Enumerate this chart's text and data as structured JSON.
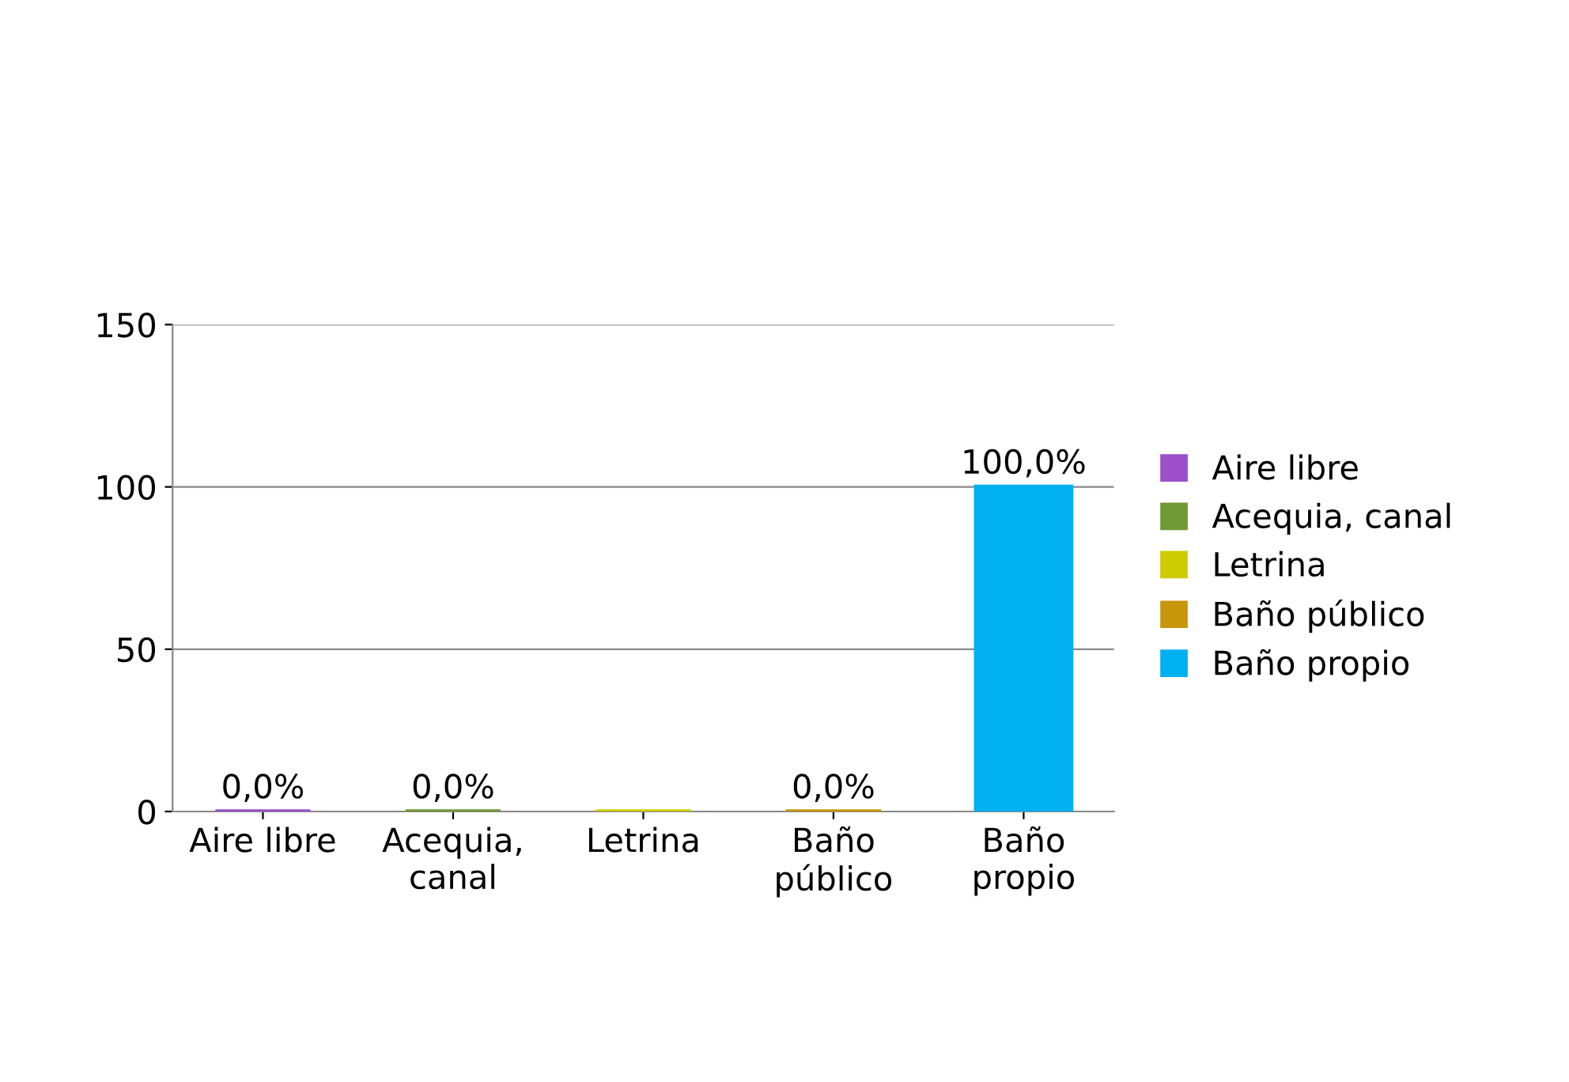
{
  "chart_data": {
    "type": "bar",
    "categories": [
      "Aire libre",
      "Acequia, canal",
      "Letrina",
      "Baño público",
      "Baño propio"
    ],
    "series": [
      {
        "name": "Aire libre",
        "color": "#9b4fc9",
        "values": [
          0,
          null,
          null,
          null,
          null
        ],
        "value_labels": [
          "0,0%",
          null,
          null,
          null,
          null
        ]
      },
      {
        "name": "Acequia, canal",
        "color": "#6f9a33",
        "values": [
          null,
          0,
          null,
          null,
          null
        ],
        "value_labels": [
          null,
          "0,0%",
          null,
          null,
          null
        ]
      },
      {
        "name": "Letrina",
        "color": "#cccc00",
        "values": [
          null,
          null,
          0,
          null,
          null
        ]
      },
      {
        "name": "Baño público",
        "color": "#c8960a",
        "values": [
          null,
          null,
          null,
          0,
          null
        ],
        "value_labels": [
          null,
          null,
          null,
          "0,0%",
          null
        ]
      },
      {
        "name": "Baño propio",
        "color": "#00b0f0",
        "values": [
          null,
          null,
          null,
          null,
          100
        ],
        "value_labels": [
          null,
          null,
          null,
          null,
          "100,0%"
        ]
      }
    ],
    "ylim": [
      0,
      150
    ],
    "yticks": [
      0,
      50,
      100,
      150
    ],
    "grid": "y",
    "legend": "right"
  }
}
